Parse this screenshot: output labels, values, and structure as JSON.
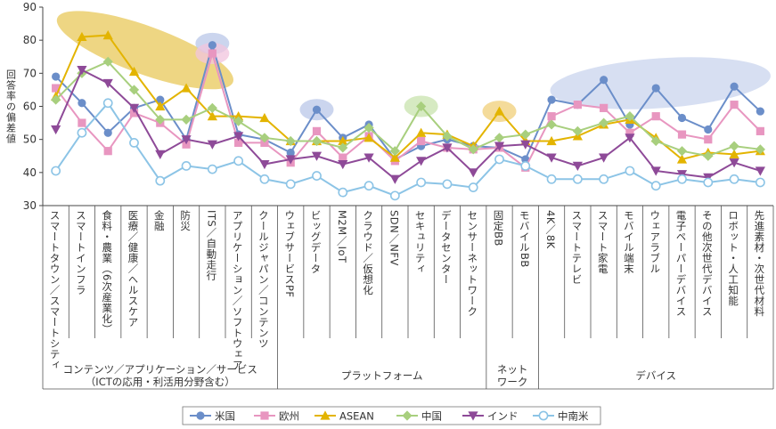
{
  "chart_data": {
    "type": "line",
    "ylabel": "回答率の偏差値",
    "ylim": [
      30,
      90
    ],
    "yticks": [
      30,
      40,
      50,
      60,
      70,
      80,
      90
    ],
    "grid": false,
    "legend_position": "bottom",
    "categories": [
      "スマートタウン／スマートシティ",
      "スマートインフラ",
      "食料・農業（6次産業化）",
      "医療／健康／ヘルスケア",
      "金融",
      "防災",
      "ITS／自動走行",
      "アプリケーション／ソフトウェア",
      "クールジャパン／コンテンツ",
      "ウェブサービスPF",
      "ビッグデータ",
      "M2M／IoT",
      "クラウド／仮想化",
      "SDN／NFV",
      "セキュリティ",
      "データセンター",
      "センサーネットワーク",
      "固定BB",
      "モバイルBB",
      "4K／8K",
      "スマートテレビ",
      "スマート家電",
      "モバイル端末",
      "ウェアラブル",
      "電子ペーパーデバイス",
      "その他次世代デバイス",
      "ロボット・人工知能",
      "先進素材・次世代材料"
    ],
    "groups": [
      {
        "label": "コンテンツ／アプリケーション／サービス（ICTの応用・利活用分野含む）",
        "start": 0,
        "end": 8
      },
      {
        "label": "プラットフォーム",
        "start": 9,
        "end": 16
      },
      {
        "label": "ネットワーク",
        "start": 17,
        "end": 18
      },
      {
        "label": "デバイス",
        "start": 19,
        "end": 27
      }
    ],
    "series": [
      {
        "name": "米国",
        "color": "#6b8ec9",
        "marker": "circle",
        "values": [
          69,
          61,
          52,
          59.5,
          62,
          50,
          78.5,
          51.5,
          50,
          46,
          59,
          50.5,
          54.5,
          44,
          48,
          50,
          48,
          47.5,
          44,
          62,
          60.5,
          68,
          54.5,
          65.5,
          56.5,
          53,
          66,
          58.5
        ]
      },
      {
        "name": "欧州",
        "color": "#e896c0",
        "marker": "square",
        "values": [
          65.5,
          55,
          46.5,
          58,
          55,
          48.5,
          76,
          49,
          49,
          43,
          52.5,
          44.5,
          51,
          43.5,
          49.5,
          47.5,
          47,
          47.5,
          41.5,
          57,
          60.5,
          59.5,
          52,
          57,
          51.5,
          50,
          60.5,
          52.5
        ]
      },
      {
        "name": "ASEAN",
        "color": "#e3b400",
        "marker": "triangle",
        "values": [
          63,
          81,
          81.5,
          70.5,
          60,
          65.5,
          57,
          57,
          56.5,
          49.5,
          49.5,
          49.5,
          50.5,
          44.5,
          52,
          51.5,
          48,
          58.5,
          49.5,
          49.5,
          51,
          54.5,
          56,
          50.5,
          44,
          46,
          45.5,
          46.5
        ]
      },
      {
        "name": "中国",
        "color": "#a8cf7e",
        "marker": "diamond",
        "values": [
          62,
          70,
          73.5,
          65,
          56,
          56,
          59.5,
          55.5,
          50.5,
          49.5,
          49.5,
          47.5,
          53.5,
          46.5,
          60,
          51,
          47,
          50.5,
          51.5,
          54.5,
          52.5,
          55,
          57,
          49.5,
          46.5,
          45,
          48,
          47
        ]
      },
      {
        "name": "インド",
        "color": "#8e4a98",
        "marker": "down-triangle",
        "values": [
          53,
          71,
          67,
          59.5,
          45.5,
          50,
          48.5,
          51,
          42.5,
          44,
          45,
          42.5,
          44.5,
          38,
          43.5,
          47.5,
          40,
          48,
          48.5,
          44.5,
          42,
          44.5,
          50.5,
          40.5,
          39.5,
          38.5,
          43,
          40.5
        ]
      },
      {
        "name": "中南米",
        "color": "#8cc4e6",
        "marker": "open-circle",
        "values": [
          40.5,
          52,
          61,
          49,
          37.5,
          42,
          41,
          43.5,
          38,
          36.5,
          39,
          34,
          36,
          33,
          37,
          36.5,
          35.5,
          44,
          42,
          38,
          38,
          38,
          40.5,
          36,
          38,
          37,
          38,
          37
        ]
      }
    ],
    "highlights": [
      {
        "color": "#e8c85a",
        "from": 1,
        "to": 5.3
      },
      {
        "color": "#b9c7e8",
        "at": 6,
        "y": 79
      },
      {
        "color": "#f1c4dd",
        "at": 6,
        "y": 76
      },
      {
        "color": "#b9c7e8",
        "at": 10,
        "y": 59
      },
      {
        "color": "#c8e3ad",
        "at": 14,
        "y": 60
      },
      {
        "color": "#f0cf78",
        "at": 17,
        "y": 58.5
      },
      {
        "color": "#c9d4ee",
        "from": 19,
        "to": 27
      }
    ]
  }
}
